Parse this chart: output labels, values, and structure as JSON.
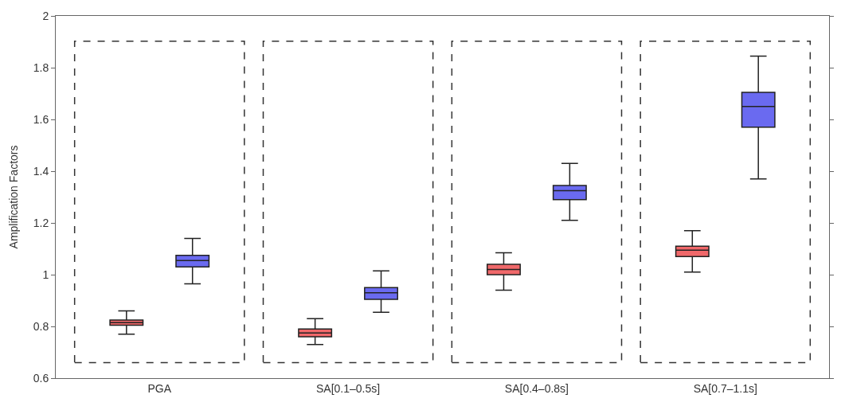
{
  "chart_data": {
    "type": "box",
    "ylabel": "Amplification Factors",
    "categories": [
      "PGA",
      "SA[0.1–0.5s]",
      "SA[0.4–0.8s]",
      "SA[0.7–1.1s]"
    ],
    "series": [
      {
        "color": "#f0686a",
        "boxes": [
          {
            "low": 0.77,
            "q1": 0.805,
            "median": 0.815,
            "q3": 0.825,
            "high": 0.86
          },
          {
            "low": 0.73,
            "q1": 0.76,
            "median": 0.775,
            "q3": 0.79,
            "high": 0.83
          },
          {
            "low": 0.94,
            "q1": 1.0,
            "median": 1.02,
            "q3": 1.04,
            "high": 1.085
          },
          {
            "low": 1.01,
            "q1": 1.07,
            "median": 1.095,
            "q3": 1.11,
            "high": 1.17
          }
        ]
      },
      {
        "color": "#6a6af0",
        "boxes": [
          {
            "low": 0.965,
            "q1": 1.03,
            "median": 1.055,
            "q3": 1.075,
            "high": 1.14
          },
          {
            "low": 0.855,
            "q1": 0.905,
            "median": 0.93,
            "q3": 0.95,
            "high": 1.015
          },
          {
            "low": 1.21,
            "q1": 1.29,
            "median": 1.325,
            "q3": 1.345,
            "high": 1.43
          },
          {
            "low": 1.37,
            "q1": 1.57,
            "median": 1.65,
            "q3": 1.705,
            "high": 1.845
          }
        ]
      }
    ],
    "ylim": [
      0.6,
      2
    ],
    "yticks": [
      0.6,
      0.8,
      1,
      1.2,
      1.4,
      1.6,
      1.8,
      2
    ],
    "grid": false
  }
}
